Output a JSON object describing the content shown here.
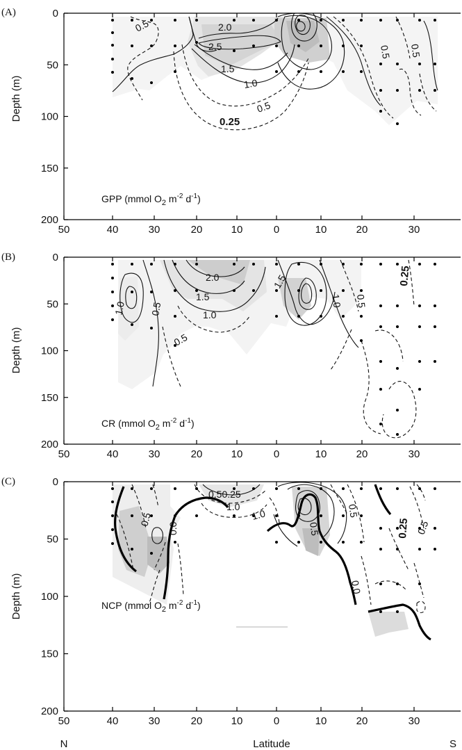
{
  "figure": {
    "x_axis_label": "Latitude",
    "x_hemisphere_labels": [
      "N",
      "S"
    ],
    "y_axis_label": "Depth (m)"
  },
  "chart_data": [
    {
      "type": "contour",
      "panel_letter": "(A)",
      "parameter_label": "GPP (mmol O2 m-2 d-1)",
      "param_main": "GPP (mmol O",
      "param_sub": "2",
      "param_unit": " m",
      "param_exp1": "-2",
      "param_mid": " d",
      "param_exp2": "-1",
      "param_close": ")",
      "x_ticks": [
        "50",
        "40",
        "30",
        "20",
        "10",
        "0",
        "10",
        "20",
        "30"
      ],
      "y_ticks": [
        "0",
        "50",
        "100",
        "150",
        "200"
      ],
      "ylim": [
        0,
        200
      ],
      "contour_labels": [
        "0.5",
        "2.0",
        "2.5",
        "1.5",
        "1.0",
        "0.5",
        "0.25",
        "0.5",
        "0.5"
      ],
      "contour_levels": [
        0.25,
        0.5,
        1.0,
        1.5,
        2.0,
        2.5
      ],
      "grid": false
    },
    {
      "type": "contour",
      "panel_letter": "(B)",
      "parameter_label": "CR (mmol O2 m-2 d-1)",
      "param_main": "CR (mmol O",
      "param_sub": "2",
      "param_unit": " m",
      "param_exp1": "-2",
      "param_mid": " d",
      "param_exp2": "-1",
      "param_close": ")",
      "x_ticks": [
        "50",
        "40",
        "30",
        "20",
        "10",
        "0",
        "10",
        "20",
        "30"
      ],
      "y_ticks": [
        "0",
        "50",
        "100",
        "150",
        "200"
      ],
      "ylim": [
        0,
        200
      ],
      "contour_labels": [
        "2.0",
        "1.5",
        "1.0",
        "1.0",
        "0.5",
        "0.5",
        "1.5",
        "1.0",
        "0.5",
        "0.25"
      ],
      "contour_levels": [
        0.25,
        0.5,
        1.0,
        1.5,
        2.0
      ],
      "grid": false
    },
    {
      "type": "contour",
      "panel_letter": "(C)",
      "parameter_label": "NCP (mmol O2 m-2 d-1)",
      "param_main": "NCP (mmol O",
      "param_sub": "2",
      "param_unit": " m",
      "param_exp1": "-2",
      "param_mid": " d",
      "param_exp2": "-1",
      "param_close": ")",
      "x_ticks": [
        "50",
        "40",
        "30",
        "20",
        "10",
        "0",
        "10",
        "20",
        "30"
      ],
      "y_ticks": [
        "0",
        "50",
        "100",
        "150",
        "200"
      ],
      "ylim": [
        0,
        200
      ],
      "contour_labels": [
        "0.50.25",
        "1.0",
        "0.5",
        "0.0",
        "1.0",
        "0.5",
        "0.5",
        "0.0",
        "0.25",
        "0.5"
      ],
      "contour_levels": [
        0.0,
        0.25,
        0.5,
        1.0
      ],
      "grid": false
    }
  ]
}
